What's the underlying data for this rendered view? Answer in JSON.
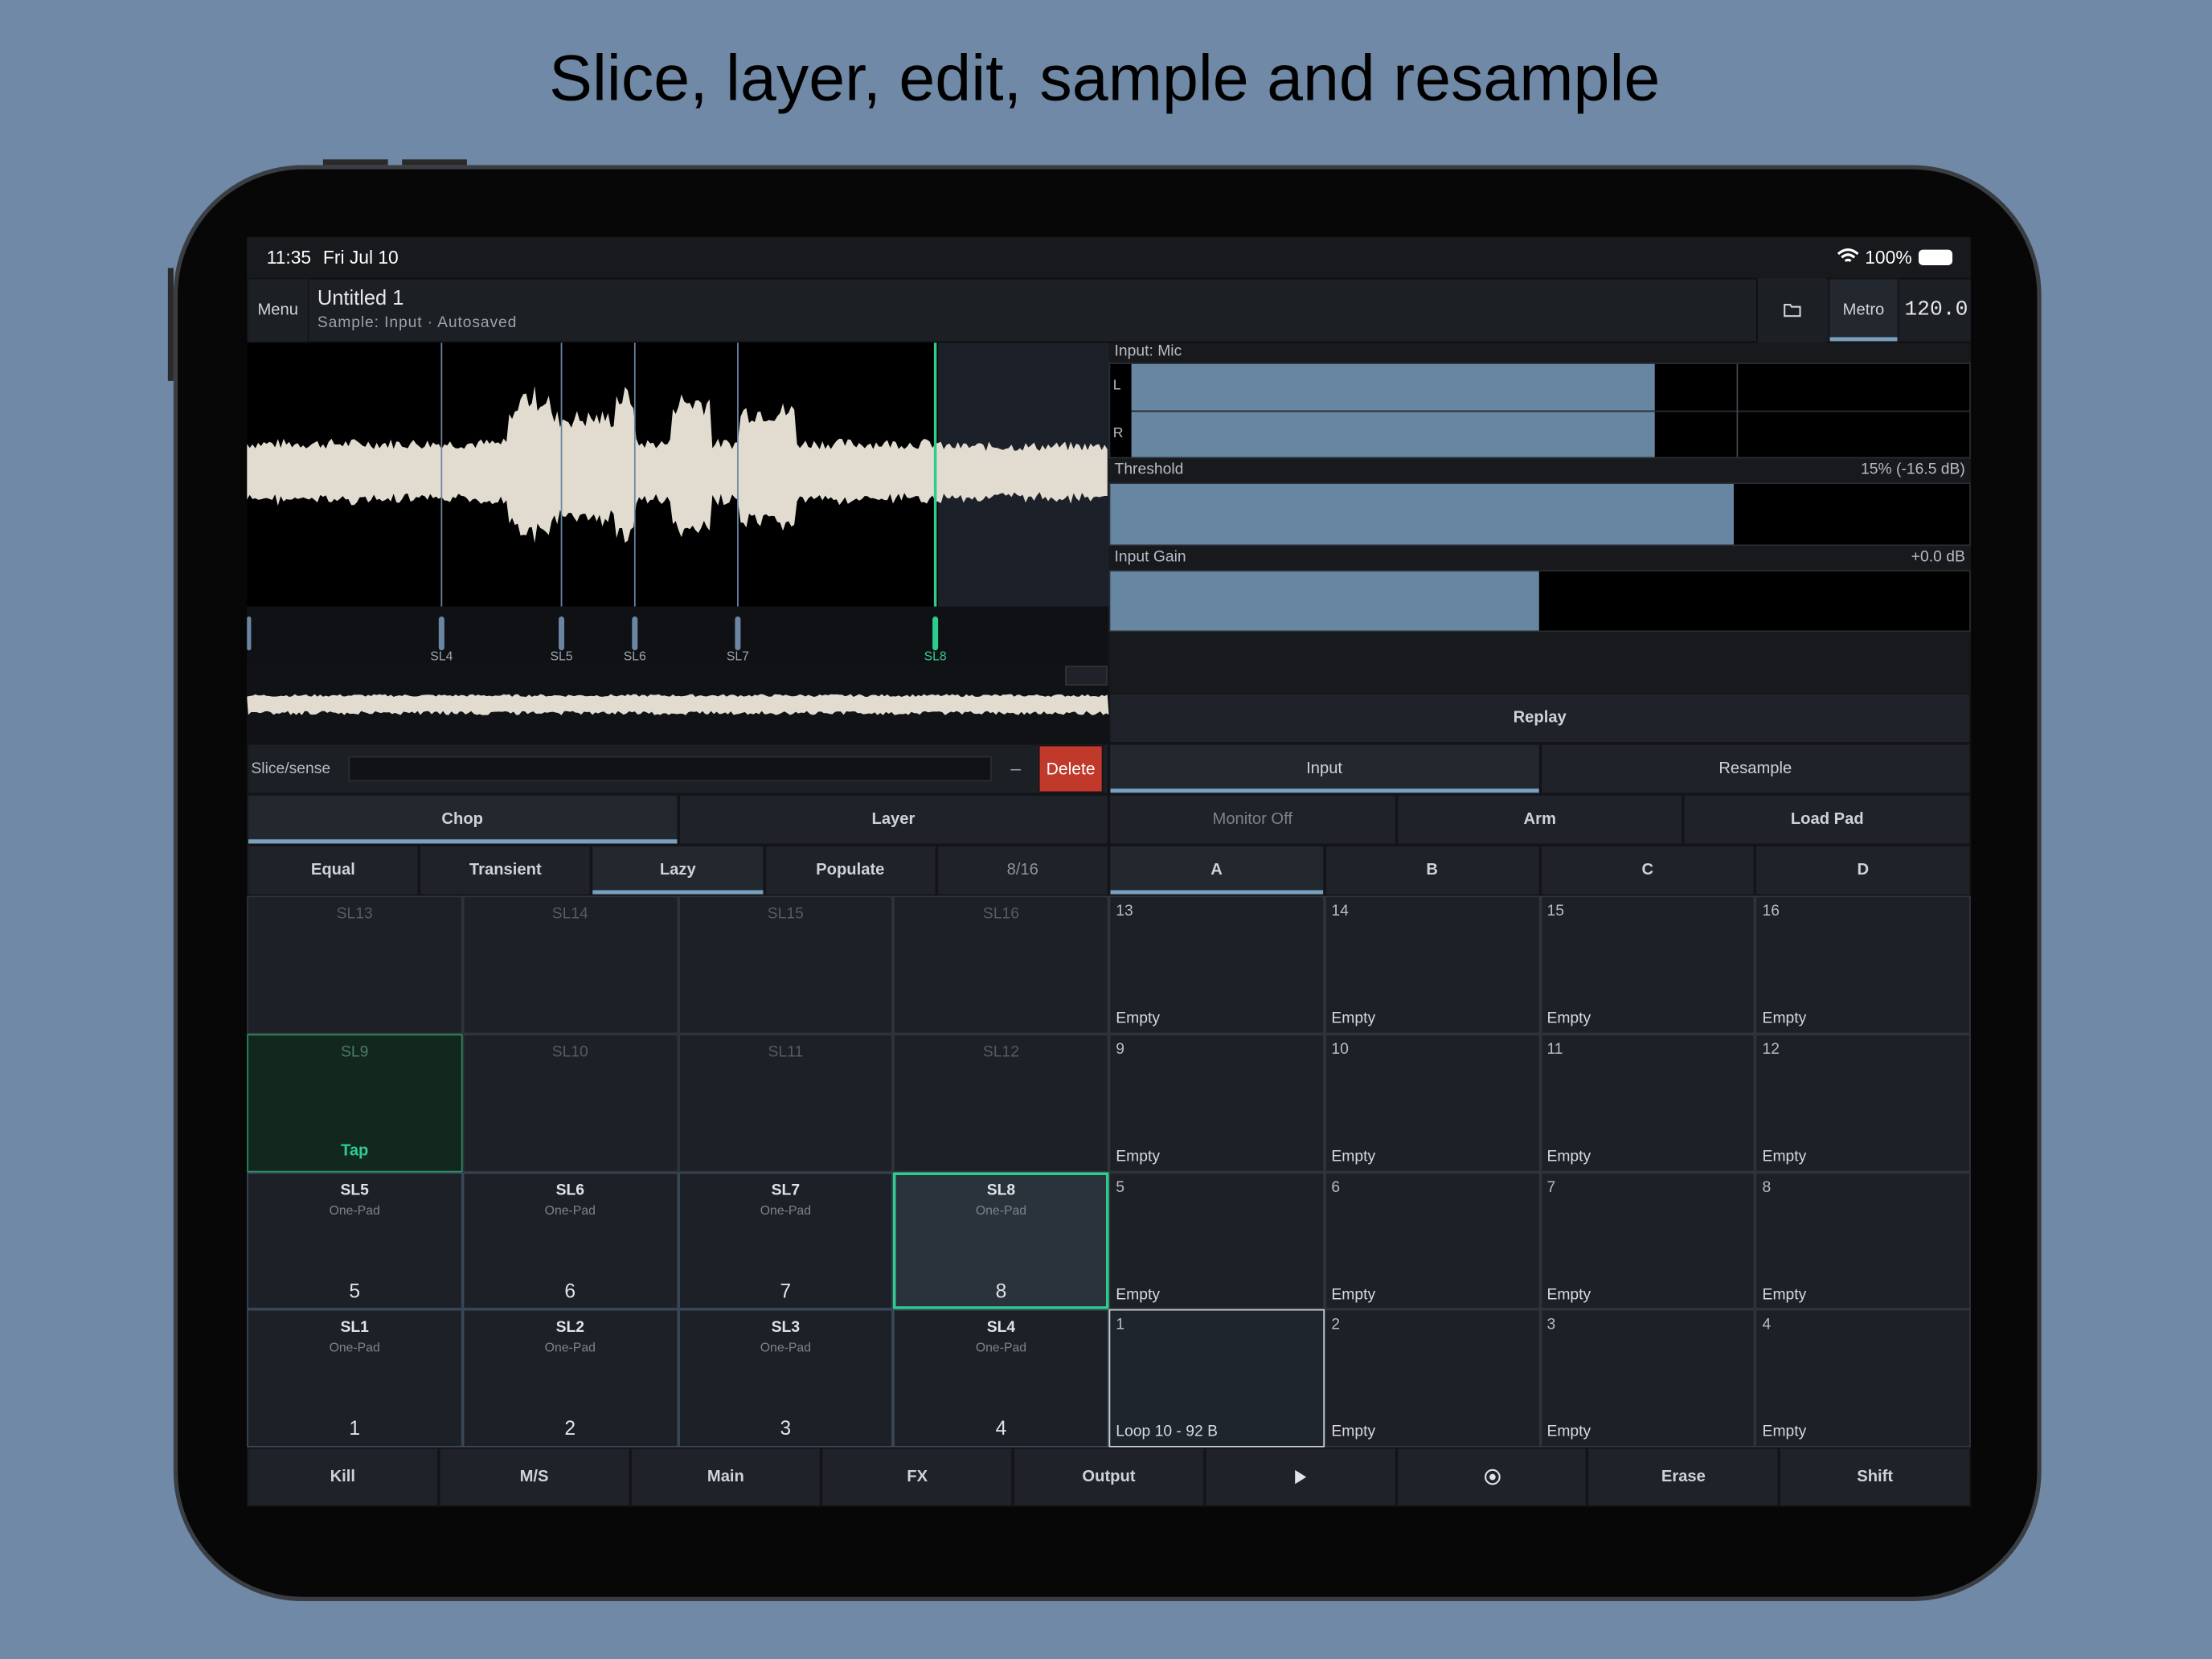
{
  "title": "Slice, layer, edit, sample and resample",
  "status": {
    "time": "11:35",
    "date": "Fri Jul 10",
    "battery": "100%"
  },
  "toolbar": {
    "menu": "Menu",
    "project": "Untitled 1",
    "subtitle": "Sample: Input · Autosaved",
    "metro": "Metro",
    "tempo": "120.0"
  },
  "markers": [
    "SL4",
    "SL5",
    "SL6",
    "SL7",
    "SL8"
  ],
  "input": {
    "label": "Input: Mic",
    "left": "L",
    "right": "R",
    "threshold": "Threshold",
    "threshold_value": "15% (-16.5 dB)",
    "gain": "Input Gain",
    "gain_value": "+0.0 dB",
    "replay": "Replay"
  },
  "slice": {
    "label": "Slice/sense",
    "minus": "–",
    "delete": "Delete"
  },
  "source_tabs": [
    "Input",
    "Resample"
  ],
  "mode_tabs": [
    "Chop",
    "Layer"
  ],
  "record_buttons": [
    "Monitor Off",
    "Arm",
    "Load Pad"
  ],
  "chop_modes": [
    "Equal",
    "Transient",
    "Lazy",
    "Populate",
    "8/16"
  ],
  "banks": [
    "A",
    "B",
    "C",
    "D"
  ],
  "slice_pads": [
    {
      "label": "SL13"
    },
    {
      "label": "SL14"
    },
    {
      "label": "SL15"
    },
    {
      "label": "SL16"
    },
    {
      "label": "SL9",
      "action": "Tap"
    },
    {
      "label": "SL10"
    },
    {
      "label": "SL11"
    },
    {
      "label": "SL12"
    },
    {
      "label": "SL5",
      "mode": "One-Pad",
      "pad": "5"
    },
    {
      "label": "SL6",
      "mode": "One-Pad",
      "pad": "6"
    },
    {
      "label": "SL7",
      "mode": "One-Pad",
      "pad": "7"
    },
    {
      "label": "SL8",
      "mode": "One-Pad",
      "pad": "8"
    },
    {
      "label": "SL1",
      "mode": "One-Pad",
      "pad": "1"
    },
    {
      "label": "SL2",
      "mode": "One-Pad",
      "pad": "2"
    },
    {
      "label": "SL3",
      "mode": "One-Pad",
      "pad": "3"
    },
    {
      "label": "SL4",
      "mode": "One-Pad",
      "pad": "4"
    }
  ],
  "pads": [
    {
      "number": "13",
      "content": "Empty"
    },
    {
      "number": "14",
      "content": "Empty"
    },
    {
      "number": "15",
      "content": "Empty"
    },
    {
      "number": "16",
      "content": "Empty"
    },
    {
      "number": "9",
      "content": "Empty"
    },
    {
      "number": "10",
      "content": "Empty"
    },
    {
      "number": "11",
      "content": "Empty"
    },
    {
      "number": "12",
      "content": "Empty"
    },
    {
      "number": "5",
      "content": "Empty"
    },
    {
      "number": "6",
      "content": "Empty"
    },
    {
      "number": "7",
      "content": "Empty"
    },
    {
      "number": "8",
      "content": "Empty"
    },
    {
      "number": "1",
      "content": "Loop 10 - 92 B"
    },
    {
      "number": "2",
      "content": "Empty"
    },
    {
      "number": "3",
      "content": "Empty"
    },
    {
      "number": "4",
      "content": "Empty"
    }
  ],
  "transport_left": [
    "Kill",
    "M/S",
    "Main",
    "FX",
    "Output"
  ],
  "transport_right": [
    "Erase",
    "Shift"
  ]
}
